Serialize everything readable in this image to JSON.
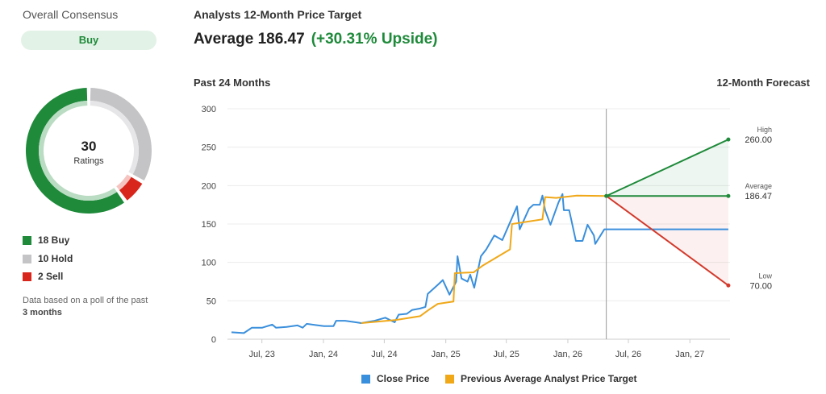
{
  "consensus": {
    "title": "Overall Consensus",
    "rating": "Buy",
    "total": "30",
    "total_label": "Ratings",
    "breakdown": [
      {
        "label": "18 Buy",
        "count": 18,
        "color": "#1e8a3a",
        "light": "#b9dcc2"
      },
      {
        "label": "10 Hold",
        "count": 10,
        "color": "#c4c4c6",
        "light": "#e6e6e8"
      },
      {
        "label": "2 Sell",
        "count": 2,
        "color": "#d9261c",
        "light": "#f5c4c0"
      }
    ],
    "note_prefix": "Data based on a poll of the past ",
    "note_bold": "3 months"
  },
  "header": {
    "title": "Analysts 12-Month Price Target",
    "average_text": "Average 186.47",
    "upside_text": "(+30.31% Upside)",
    "past_label": "Past 24 Months",
    "forecast_label": "12-Month Forecast"
  },
  "chart_data": {
    "type": "line",
    "ylim": [
      0,
      300
    ],
    "yticks": [
      "0",
      "50",
      "100",
      "150",
      "200",
      "250",
      "300"
    ],
    "xlim": [
      "2023-03-20",
      "2027-05-01"
    ],
    "xticks": [
      {
        "date": "2023-07-01",
        "label": "Jul, 23"
      },
      {
        "date": "2024-01-01",
        "label": "Jan, 24"
      },
      {
        "date": "2024-07-01",
        "label": "Jul, 24"
      },
      {
        "date": "2025-01-01",
        "label": "Jan, 25"
      },
      {
        "date": "2025-07-01",
        "label": "Jul, 25"
      },
      {
        "date": "2026-01-01",
        "label": "Jan, 26"
      },
      {
        "date": "2026-07-01",
        "label": "Jul, 26"
      },
      {
        "date": "2027-01-01",
        "label": "Jan, 27"
      }
    ],
    "grid": true,
    "legend_position": "bottom",
    "today": "2026-04-26",
    "series": [
      {
        "name": "Close Price",
        "color": "#3a8fdc",
        "points": [
          [
            "2023-04-01",
            9
          ],
          [
            "2023-05-08",
            8
          ],
          [
            "2023-06-01",
            15
          ],
          [
            "2023-07-02",
            15
          ],
          [
            "2023-08-01",
            19
          ],
          [
            "2023-08-12",
            15
          ],
          [
            "2023-09-13",
            16
          ],
          [
            "2023-10-15",
            18
          ],
          [
            "2023-10-31",
            15
          ],
          [
            "2023-11-12",
            20
          ],
          [
            "2023-12-17",
            18
          ],
          [
            "2024-01-03",
            17
          ],
          [
            "2024-01-31",
            17
          ],
          [
            "2024-02-08",
            24
          ],
          [
            "2024-03-06",
            24
          ],
          [
            "2024-04-07",
            22
          ],
          [
            "2024-04-23",
            21
          ],
          [
            "2024-06-02",
            24
          ],
          [
            "2024-07-04",
            28
          ],
          [
            "2024-08-01",
            22
          ],
          [
            "2024-08-13",
            32
          ],
          [
            "2024-09-06",
            33
          ],
          [
            "2024-09-22",
            38
          ],
          [
            "2024-10-16",
            40
          ],
          [
            "2024-11-01",
            42
          ],
          [
            "2024-11-08",
            59
          ],
          [
            "2024-12-11",
            72
          ],
          [
            "2024-12-23",
            77
          ],
          [
            "2025-01-12",
            58
          ],
          [
            "2025-02-01",
            75
          ],
          [
            "2025-02-05",
            108
          ],
          [
            "2025-02-17",
            79
          ],
          [
            "2025-03-07",
            75
          ],
          [
            "2025-03-15",
            84
          ],
          [
            "2025-03-27",
            67
          ],
          [
            "2025-04-16",
            108
          ],
          [
            "2025-05-02",
            117
          ],
          [
            "2025-05-26",
            135
          ],
          [
            "2025-06-19",
            129
          ],
          [
            "2025-07-09",
            149
          ],
          [
            "2025-08-02",
            173
          ],
          [
            "2025-08-10",
            143
          ],
          [
            "2025-09-07",
            170
          ],
          [
            "2025-09-20",
            175
          ],
          [
            "2025-10-09",
            175
          ],
          [
            "2025-10-17",
            187
          ],
          [
            "2025-10-25",
            168
          ],
          [
            "2025-11-10",
            149
          ],
          [
            "2025-12-04",
            178
          ],
          [
            "2025-12-16",
            189
          ],
          [
            "2025-12-20",
            168
          ],
          [
            "2026-01-05",
            168
          ],
          [
            "2026-01-25",
            128
          ],
          [
            "2026-02-14",
            128
          ],
          [
            "2026-03-01",
            149
          ],
          [
            "2026-03-20",
            135
          ],
          [
            "2026-03-24",
            124
          ],
          [
            "2026-04-20",
            143
          ],
          [
            "2026-04-26",
            143
          ],
          [
            "2027-04-26",
            143
          ]
        ]
      },
      {
        "name": "Previous Average Analyst Price Target",
        "color": "#f0a818",
        "points": [
          [
            "2024-04-23",
            21
          ],
          [
            "2024-08-05",
            25
          ],
          [
            "2024-10-16",
            30
          ],
          [
            "2024-11-10",
            38
          ],
          [
            "2024-12-08",
            46
          ],
          [
            "2025-01-24",
            49
          ],
          [
            "2025-01-28",
            86
          ],
          [
            "2025-03-25",
            87
          ],
          [
            "2025-04-22",
            96
          ],
          [
            "2025-07-12",
            117
          ],
          [
            "2025-07-18",
            150
          ],
          [
            "2025-10-17",
            156
          ],
          [
            "2025-10-25",
            185
          ],
          [
            "2025-11-27",
            184
          ],
          [
            "2026-01-28",
            187
          ],
          [
            "2026-04-26",
            186.47
          ]
        ]
      }
    ],
    "forecast": {
      "start": {
        "date": "2026-04-26",
        "value": 186.47
      },
      "end_date": "2027-04-26",
      "targets": [
        {
          "label": "High",
          "value": 260.0,
          "text": "260.00",
          "color": "#1e8a3a"
        },
        {
          "label": "Average",
          "value": 186.47,
          "text": "186.47",
          "color": "#1e8a3a"
        },
        {
          "label": "Low",
          "value": 70.0,
          "text": "70.00",
          "color": "#d33a2c"
        }
      ]
    }
  }
}
